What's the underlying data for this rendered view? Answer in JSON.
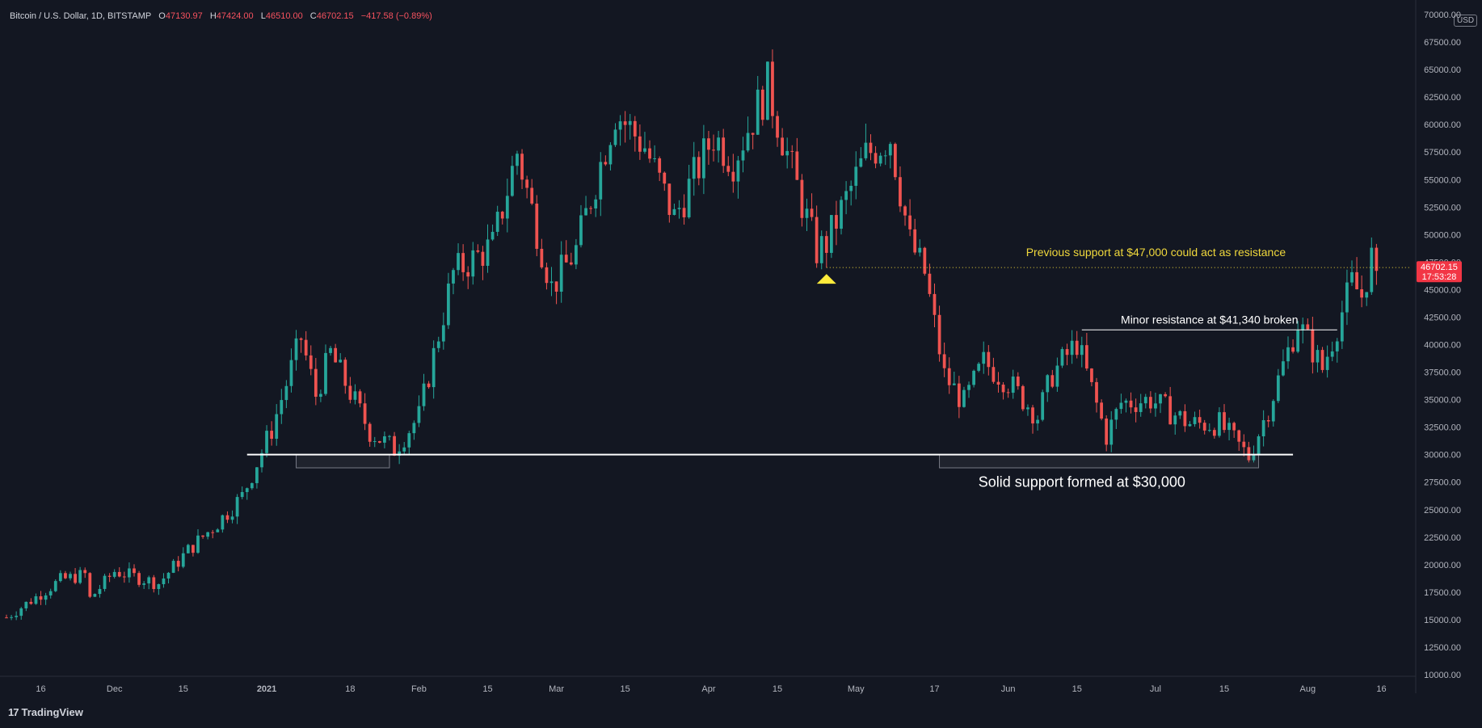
{
  "header": {
    "symbol": "Bitcoin / U.S. Dollar, 1D, BITSTAMP",
    "open_label": "O",
    "open": "47130.97",
    "high_label": "H",
    "high": "47424.00",
    "low_label": "L",
    "low": "46510.00",
    "close_label": "C",
    "close": "46702.15",
    "change": "−417.58 (−0.89%)"
  },
  "currency_button": "USD",
  "price_badge": {
    "price": "46702.15",
    "countdown": "17:53:28"
  },
  "brand": {
    "logo": "17",
    "name": "TradingView"
  },
  "colors": {
    "background": "#131722",
    "up": "#26a69a",
    "down": "#ef5350",
    "annotation_yellow": "#f0d83c",
    "text": "#b2b5be",
    "label_white": "#ffffff"
  },
  "chart_data": {
    "type": "candlestick",
    "symbol": "BTCUSD",
    "interval": "1D",
    "exchange": "BITSTAMP",
    "ylim": [
      10000,
      70000
    ],
    "y_ticks": [
      "10000.00",
      "12500.00",
      "15000.00",
      "17500.00",
      "20000.00",
      "22500.00",
      "25000.00",
      "27500.00",
      "30000.00",
      "32500.00",
      "35000.00",
      "37500.00",
      "40000.00",
      "42500.00",
      "45000.00",
      "47500.00",
      "50000.00",
      "52500.00",
      "55000.00",
      "57500.00",
      "60000.00",
      "62500.00",
      "65000.00",
      "67500.00",
      "70000.00"
    ],
    "y_tick_values": [
      10000,
      12500,
      15000,
      17500,
      20000,
      22500,
      25000,
      27500,
      30000,
      32500,
      35000,
      37500,
      40000,
      42500,
      45000,
      47500,
      50000,
      52500,
      55000,
      57500,
      60000,
      62500,
      65000,
      67500,
      70000
    ],
    "x_start": "2020-11-09",
    "x_end": "2021-08-23",
    "x_ticks": [
      {
        "date": "2020-11-16",
        "label": "16"
      },
      {
        "date": "2020-12-01",
        "label": "Dec"
      },
      {
        "date": "2020-12-15",
        "label": "15"
      },
      {
        "date": "2021-01-01",
        "label": "2021"
      },
      {
        "date": "2021-01-18",
        "label": "18"
      },
      {
        "date": "2021-02-01",
        "label": "Feb"
      },
      {
        "date": "2021-02-15",
        "label": "15"
      },
      {
        "date": "2021-03-01",
        "label": "Mar"
      },
      {
        "date": "2021-03-15",
        "label": "15"
      },
      {
        "date": "2021-04-01",
        "label": "Apr"
      },
      {
        "date": "2021-04-15",
        "label": "15"
      },
      {
        "date": "2021-05-01",
        "label": "May"
      },
      {
        "date": "2021-05-17",
        "label": "17"
      },
      {
        "date": "2021-06-01",
        "label": "Jun"
      },
      {
        "date": "2021-06-15",
        "label": "15"
      },
      {
        "date": "2021-07-01",
        "label": "Jul"
      },
      {
        "date": "2021-07-15",
        "label": "15"
      },
      {
        "date": "2021-08-01",
        "label": "Aug"
      },
      {
        "date": "2021-08-16",
        "label": "16"
      }
    ],
    "price_path": [
      {
        "date": "2020-11-09",
        "price": 15200
      },
      {
        "date": "2020-11-20",
        "price": 18600
      },
      {
        "date": "2020-11-25",
        "price": 19100
      },
      {
        "date": "2020-11-26",
        "price": 16900
      },
      {
        "date": "2020-12-01",
        "price": 19400
      },
      {
        "date": "2020-12-10",
        "price": 18300
      },
      {
        "date": "2020-12-16",
        "price": 21300
      },
      {
        "date": "2020-12-22",
        "price": 23800
      },
      {
        "date": "2020-12-27",
        "price": 26200
      },
      {
        "date": "2021-01-02",
        "price": 32300
      },
      {
        "date": "2021-01-08",
        "price": 40600
      },
      {
        "date": "2021-01-11",
        "price": 35400
      },
      {
        "date": "2021-01-14",
        "price": 39200
      },
      {
        "date": "2021-01-22",
        "price": 32100
      },
      {
        "date": "2021-01-27",
        "price": 30500
      },
      {
        "date": "2021-02-01",
        "price": 33500
      },
      {
        "date": "2021-02-08",
        "price": 46500
      },
      {
        "date": "2021-02-16",
        "price": 49000
      },
      {
        "date": "2021-02-21",
        "price": 57500
      },
      {
        "date": "2021-02-28",
        "price": 45200
      },
      {
        "date": "2021-03-05",
        "price": 48600
      },
      {
        "date": "2021-03-13",
        "price": 61200
      },
      {
        "date": "2021-03-19",
        "price": 58000
      },
      {
        "date": "2021-03-25",
        "price": 51500
      },
      {
        "date": "2021-04-02",
        "price": 59000
      },
      {
        "date": "2021-04-06",
        "price": 56800
      },
      {
        "date": "2021-04-13",
        "price": 63500
      },
      {
        "date": "2021-04-18",
        "price": 55800
      },
      {
        "date": "2021-04-23",
        "price": 48500
      },
      {
        "date": "2021-04-25",
        "price": 49200
      },
      {
        "date": "2021-05-03",
        "price": 57200
      },
      {
        "date": "2021-05-08",
        "price": 58900
      },
      {
        "date": "2021-05-12",
        "price": 49300
      },
      {
        "date": "2021-05-15",
        "price": 46500
      },
      {
        "date": "2021-05-19",
        "price": 37200
      },
      {
        "date": "2021-05-23",
        "price": 34700
      },
      {
        "date": "2021-05-27",
        "price": 38400
      },
      {
        "date": "2021-06-01",
        "price": 36600
      },
      {
        "date": "2021-06-07",
        "price": 33500
      },
      {
        "date": "2021-06-10",
        "price": 37300
      },
      {
        "date": "2021-06-15",
        "price": 40200
      },
      {
        "date": "2021-06-21",
        "price": 31700
      },
      {
        "date": "2021-06-24",
        "price": 34700
      },
      {
        "date": "2021-06-30",
        "price": 35000
      },
      {
        "date": "2021-07-08",
        "price": 32800
      },
      {
        "date": "2021-07-14",
        "price": 32800
      },
      {
        "date": "2021-07-20",
        "price": 29800
      },
      {
        "date": "2021-07-24",
        "price": 34200
      },
      {
        "date": "2021-07-30",
        "price": 42000
      },
      {
        "date": "2021-08-04",
        "price": 37800
      },
      {
        "date": "2021-08-10",
        "price": 45600
      },
      {
        "date": "2021-08-12",
        "price": 44400
      },
      {
        "date": "2021-08-14",
        "price": 47900
      },
      {
        "date": "2021-08-15",
        "price": 46702
      }
    ],
    "annotations": {
      "support": {
        "price": 30000,
        "label": "Solid support formed at $30,000",
        "from": "2020-12-28",
        "to": "2021-07-29",
        "zones": [
          {
            "from": "2021-01-07",
            "to": "2021-01-26"
          },
          {
            "from": "2021-05-18",
            "to": "2021-07-22"
          }
        ]
      },
      "minor_resistance": {
        "price": 41340,
        "label": "Minor resistance at $41,340 broken",
        "from": "2021-06-16",
        "to": "2021-08-07"
      },
      "previous_support": {
        "price": 47000,
        "label": "Previous support at $47,000 could act as resistance",
        "from": "2021-04-25",
        "to": "2021-08-22",
        "marker_date": "2021-04-25"
      }
    },
    "last_price": 46702.15,
    "grid": false,
    "legend": "none"
  }
}
